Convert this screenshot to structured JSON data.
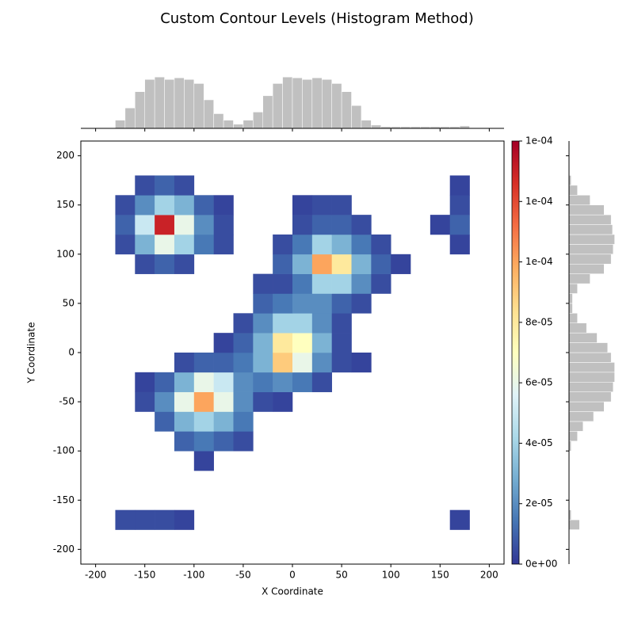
{
  "chart_data": {
    "type": "hist2d",
    "title": "Custom Contour Levels (Histogram Method)",
    "xlabel": "X Coordinate",
    "ylabel": "Y Coordinate",
    "xlim": [
      -215,
      215
    ],
    "ylim": [
      -215,
      215
    ],
    "xticks": [
      -200,
      -150,
      -100,
      -50,
      0,
      50,
      100,
      150,
      200
    ],
    "yticks": [
      -200,
      -150,
      -100,
      -50,
      0,
      50,
      100,
      150,
      200
    ],
    "xbins": [
      -200,
      -180,
      -160,
      -140,
      -120,
      -100,
      -80,
      -60,
      -40,
      -20,
      0,
      20,
      40,
      60,
      80,
      100,
      120,
      140,
      160,
      180,
      200
    ],
    "ybins": [
      -200,
      -180,
      -160,
      -140,
      -120,
      -100,
      -80,
      -60,
      -40,
      -20,
      0,
      20,
      40,
      60,
      80,
      100,
      120,
      140,
      160,
      180,
      200
    ],
    "z": [
      [
        null,
        null,
        null,
        null,
        null,
        null,
        null,
        null,
        null,
        null,
        null,
        null,
        null,
        null,
        null,
        null,
        null,
        null,
        null,
        null
      ],
      [
        null,
        5e-06,
        5e-06,
        5e-06,
        3e-06,
        null,
        null,
        null,
        null,
        null,
        null,
        null,
        null,
        null,
        null,
        null,
        null,
        null,
        3e-06,
        null
      ],
      [
        null,
        null,
        null,
        null,
        null,
        null,
        null,
        null,
        null,
        null,
        null,
        null,
        null,
        null,
        null,
        null,
        null,
        null,
        null,
        null
      ],
      [
        null,
        null,
        null,
        null,
        null,
        null,
        null,
        null,
        null,
        null,
        null,
        null,
        null,
        null,
        null,
        null,
        null,
        null,
        null,
        null
      ],
      [
        null,
        null,
        null,
        null,
        null,
        3e-06,
        null,
        null,
        null,
        null,
        null,
        null,
        null,
        null,
        null,
        null,
        null,
        null,
        null,
        null
      ],
      [
        null,
        null,
        null,
        null,
        1e-05,
        1.5e-05,
        1e-05,
        5e-06,
        null,
        null,
        null,
        null,
        null,
        null,
        null,
        null,
        null,
        null,
        null,
        null
      ],
      [
        null,
        null,
        null,
        1e-05,
        3e-05,
        4e-05,
        3e-05,
        1.5e-05,
        null,
        null,
        null,
        null,
        null,
        null,
        null,
        null,
        null,
        null,
        null,
        null
      ],
      [
        null,
        null,
        5e-06,
        2e-05,
        6e-05,
        0.0001,
        6e-05,
        2e-05,
        5e-06,
        3e-06,
        null,
        null,
        null,
        null,
        null,
        null,
        null,
        null,
        null,
        null
      ],
      [
        null,
        null,
        3e-06,
        1e-05,
        3e-05,
        6e-05,
        5e-05,
        2e-05,
        1.5e-05,
        2e-05,
        1.5e-05,
        5e-06,
        null,
        null,
        null,
        null,
        null,
        null,
        null,
        null
      ],
      [
        null,
        null,
        null,
        null,
        5e-06,
        1e-05,
        1e-05,
        1.5e-05,
        3e-05,
        9e-05,
        6e-05,
        2e-05,
        5e-06,
        3e-06,
        null,
        null,
        null,
        null,
        null,
        null
      ],
      [
        null,
        null,
        null,
        null,
        null,
        null,
        3e-06,
        1e-05,
        3e-05,
        8e-05,
        7e-05,
        3e-05,
        5e-06,
        null,
        null,
        null,
        null,
        null,
        null,
        null
      ],
      [
        null,
        null,
        null,
        null,
        null,
        null,
        null,
        5e-06,
        2e-05,
        4e-05,
        4e-05,
        2e-05,
        5e-06,
        null,
        null,
        null,
        null,
        null,
        null,
        null
      ],
      [
        null,
        null,
        null,
        null,
        null,
        null,
        null,
        null,
        1e-05,
        1.5e-05,
        2e-05,
        2e-05,
        1e-05,
        5e-06,
        null,
        null,
        null,
        null,
        null,
        null
      ],
      [
        null,
        null,
        null,
        null,
        null,
        null,
        null,
        null,
        5e-06,
        5e-06,
        1.5e-05,
        4e-05,
        4e-05,
        2e-05,
        5e-06,
        null,
        null,
        null,
        null,
        null
      ],
      [
        null,
        null,
        5e-06,
        1e-05,
        5e-06,
        null,
        null,
        null,
        null,
        1e-05,
        3e-05,
        0.0001,
        8e-05,
        3e-05,
        1e-05,
        3e-06,
        null,
        null,
        null,
        null
      ],
      [
        null,
        5e-06,
        3e-05,
        6e-05,
        4e-05,
        1.5e-05,
        5e-06,
        null,
        null,
        5e-06,
        1.5e-05,
        4e-05,
        3e-05,
        1.5e-05,
        5e-06,
        null,
        null,
        null,
        3e-06,
        null
      ],
      [
        null,
        1e-05,
        5e-05,
        0.00013,
        6e-05,
        2e-05,
        5e-06,
        null,
        null,
        null,
        5e-06,
        1e-05,
        1e-05,
        5e-06,
        null,
        null,
        null,
        3e-06,
        1e-05,
        null
      ],
      [
        null,
        5e-06,
        2e-05,
        4e-05,
        3e-05,
        1e-05,
        3e-06,
        null,
        null,
        null,
        3e-06,
        5e-06,
        5e-06,
        null,
        null,
        null,
        null,
        null,
        5e-06,
        null
      ],
      [
        null,
        null,
        5e-06,
        1e-05,
        5e-06,
        null,
        null,
        null,
        null,
        null,
        null,
        null,
        null,
        null,
        null,
        null,
        null,
        null,
        3e-06,
        null
      ],
      [
        null,
        null,
        null,
        null,
        null,
        null,
        null,
        null,
        null,
        null,
        null,
        null,
        null,
        null,
        null,
        null,
        null,
        null,
        null,
        null
      ]
    ],
    "colormap": [
      "#313695",
      "#4575b4",
      "#74add1",
      "#abd9e9",
      "#e0f3f8",
      "#ffffbf",
      "#fee090",
      "#fdae61",
      "#f46d43",
      "#d73027",
      "#a50026"
    ],
    "clim": [
      0,
      0.00014
    ],
    "cticks": [
      {
        "value": 0,
        "label": "0e+00"
      },
      {
        "value": 2e-05,
        "label": "2e-05"
      },
      {
        "value": 4e-05,
        "label": "4e-05"
      },
      {
        "value": 6e-05,
        "label": "6e-05"
      },
      {
        "value": 8e-05,
        "label": "8e-05"
      },
      {
        "value": 0.0001,
        "label": "1e-04"
      },
      {
        "value": 0.00012,
        "label": "1e-04"
      },
      {
        "value": 0.00014,
        "label": "1e-04"
      }
    ],
    "hist_color": "#c0c0c0",
    "x_hist": {
      "bins": [
        -180,
        -170,
        -160,
        -150,
        -140,
        -130,
        -120,
        -110,
        -100,
        -90,
        -80,
        -70,
        -60,
        -50,
        -40,
        -30,
        -20,
        -10,
        0,
        10,
        20,
        30,
        40,
        50,
        60,
        70,
        80,
        90,
        100,
        110,
        120,
        130,
        140,
        150,
        160,
        170,
        180
      ],
      "counts": [
        10,
        25,
        45,
        60,
        63,
        60,
        62,
        60,
        55,
        35,
        18,
        10,
        5,
        10,
        20,
        40,
        55,
        63,
        62,
        60,
        62,
        60,
        55,
        45,
        28,
        10,
        4,
        2,
        2,
        2,
        2,
        2,
        2,
        2,
        2,
        3
      ],
      "lim": [
        0,
        70
      ]
    },
    "y_hist": {
      "bins": [
        -180,
        -170,
        -160,
        -150,
        -140,
        -130,
        -120,
        -110,
        -100,
        -90,
        -80,
        -70,
        -60,
        -50,
        -40,
        -30,
        -20,
        -10,
        0,
        10,
        20,
        30,
        40,
        50,
        60,
        70,
        80,
        90,
        100,
        110,
        120,
        130,
        140,
        150,
        160,
        170,
        180
      ],
      "counts": [
        15,
        3,
        0,
        0,
        0,
        0,
        0,
        0,
        3,
        12,
        20,
        35,
        50,
        60,
        63,
        65,
        65,
        60,
        55,
        40,
        25,
        12,
        5,
        5,
        12,
        30,
        50,
        60,
        63,
        65,
        62,
        60,
        50,
        30,
        12,
        3
      ],
      "lim": [
        0,
        70
      ]
    }
  }
}
